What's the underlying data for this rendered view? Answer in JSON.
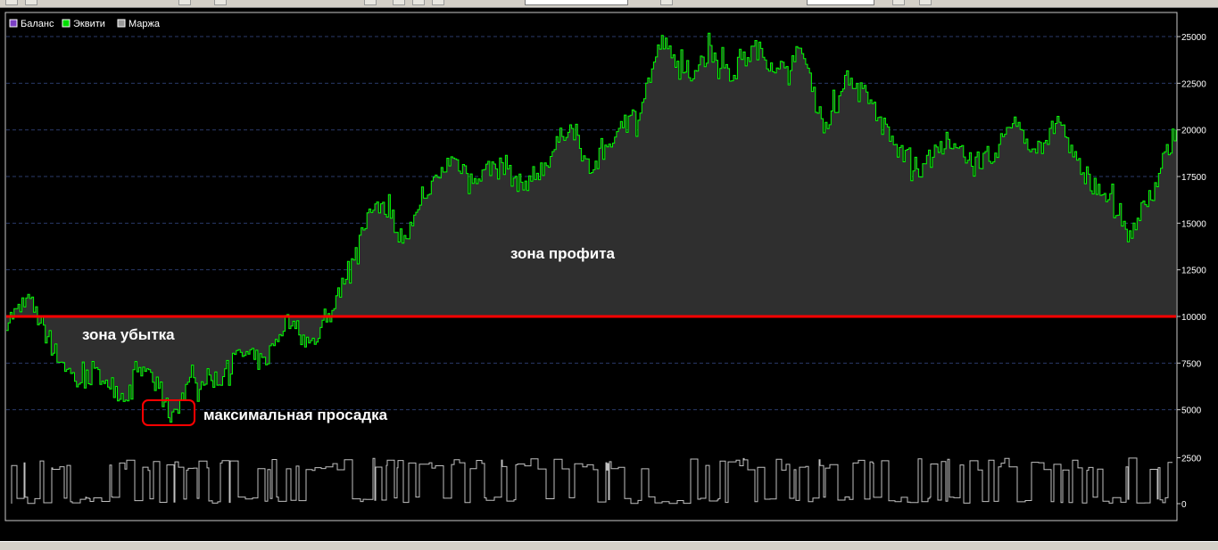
{
  "legend": [
    {
      "label": "Баланс",
      "color": "#7b3fc4"
    },
    {
      "label": "Эквити",
      "color": "#00dd00"
    },
    {
      "label": "Маржа",
      "color": "#9a9a9a"
    }
  ],
  "annotations": {
    "loss_zone": "зона убытка",
    "profit_zone": "зона профита",
    "max_drawdown": "максимальная просадка"
  },
  "colors": {
    "background": "#000000",
    "equity_line": "#00ff00",
    "equity_fill": "#2f2f2f",
    "balance_line": "#ff0000",
    "margin_line": "#c0c0c0",
    "grid": "#2a3a6a",
    "axis_text": "#ffffff",
    "drawdown_box": "#ff0000"
  },
  "chart_data": {
    "type": "area",
    "ylim": [
      0,
      26000
    ],
    "y_ticks": [
      "25000",
      "22500",
      "20000",
      "17500",
      "15000",
      "12500",
      "10000",
      "7500",
      "5000",
      "2500",
      "0"
    ],
    "grid": true,
    "legend_position": "top-left",
    "balance_level": 10000,
    "max_drawdown_value": 4700,
    "series": [
      {
        "name": "Эквити",
        "x": [
          0,
          2,
          4,
          6,
          8,
          10,
          12,
          14,
          16,
          18,
          20,
          22,
          24,
          26,
          28,
          30,
          32,
          34,
          36,
          38,
          40,
          42,
          44,
          46,
          48,
          50,
          52,
          54,
          56,
          58,
          60,
          62,
          64,
          66,
          68,
          70,
          72,
          74,
          76,
          78,
          80,
          82,
          84,
          86,
          88,
          90,
          92,
          94,
          96,
          98,
          100
        ],
        "values": [
          9800,
          10800,
          8200,
          6500,
          6900,
          5700,
          7300,
          4700,
          6600,
          6700,
          8000,
          7500,
          9900,
          8400,
          10500,
          14000,
          16500,
          14000,
          16600,
          18500,
          17500,
          18200,
          17000,
          18100,
          20300,
          17800,
          19800,
          21000,
          24800,
          22700,
          24200,
          23000,
          24400,
          23200,
          24200,
          20000,
          22900,
          21300,
          19000,
          17800,
          19200,
          18600,
          18300,
          20500,
          18800,
          20500,
          17500,
          16500,
          14200,
          17000,
          20000
        ]
      },
      {
        "name": "Баланс",
        "values": [
          10000
        ]
      },
      {
        "name": "Маржа",
        "values": [
          0,
          2500
        ]
      }
    ]
  }
}
